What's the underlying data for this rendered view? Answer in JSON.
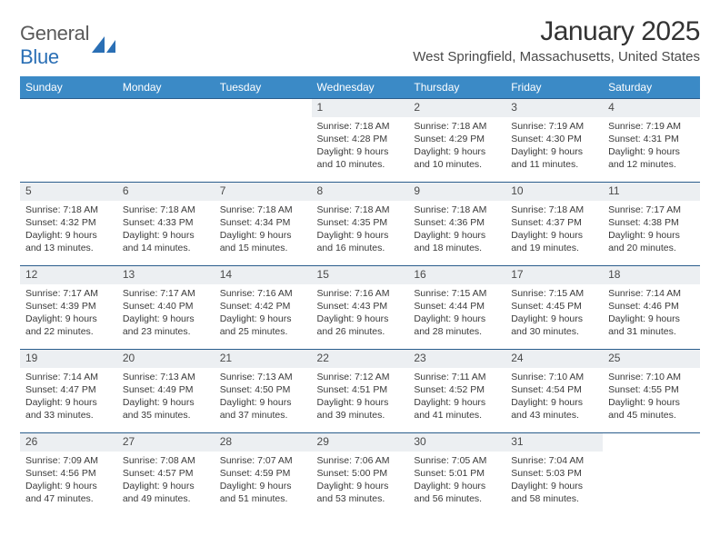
{
  "brand": {
    "part1": "General",
    "part2": "Blue"
  },
  "title": "January 2025",
  "location": "West Springfield, Massachusetts, United States",
  "dayHeaders": [
    "Sunday",
    "Monday",
    "Tuesday",
    "Wednesday",
    "Thursday",
    "Friday",
    "Saturday"
  ],
  "colors": {
    "headerBg": "#3b8ac6",
    "borderTop": "#2a5d8c",
    "dayRowBg": "#eceff2"
  },
  "weeks": [
    [
      {
        "empty": true
      },
      {
        "empty": true
      },
      {
        "empty": true
      },
      {
        "day": "1",
        "sunrise": "Sunrise: 7:18 AM",
        "sunset": "Sunset: 4:28 PM",
        "daylight": "Daylight: 9 hours and 10 minutes."
      },
      {
        "day": "2",
        "sunrise": "Sunrise: 7:18 AM",
        "sunset": "Sunset: 4:29 PM",
        "daylight": "Daylight: 9 hours and 10 minutes."
      },
      {
        "day": "3",
        "sunrise": "Sunrise: 7:19 AM",
        "sunset": "Sunset: 4:30 PM",
        "daylight": "Daylight: 9 hours and 11 minutes."
      },
      {
        "day": "4",
        "sunrise": "Sunrise: 7:19 AM",
        "sunset": "Sunset: 4:31 PM",
        "daylight": "Daylight: 9 hours and 12 minutes."
      }
    ],
    [
      {
        "day": "5",
        "sunrise": "Sunrise: 7:18 AM",
        "sunset": "Sunset: 4:32 PM",
        "daylight": "Daylight: 9 hours and 13 minutes."
      },
      {
        "day": "6",
        "sunrise": "Sunrise: 7:18 AM",
        "sunset": "Sunset: 4:33 PM",
        "daylight": "Daylight: 9 hours and 14 minutes."
      },
      {
        "day": "7",
        "sunrise": "Sunrise: 7:18 AM",
        "sunset": "Sunset: 4:34 PM",
        "daylight": "Daylight: 9 hours and 15 minutes."
      },
      {
        "day": "8",
        "sunrise": "Sunrise: 7:18 AM",
        "sunset": "Sunset: 4:35 PM",
        "daylight": "Daylight: 9 hours and 16 minutes."
      },
      {
        "day": "9",
        "sunrise": "Sunrise: 7:18 AM",
        "sunset": "Sunset: 4:36 PM",
        "daylight": "Daylight: 9 hours and 18 minutes."
      },
      {
        "day": "10",
        "sunrise": "Sunrise: 7:18 AM",
        "sunset": "Sunset: 4:37 PM",
        "daylight": "Daylight: 9 hours and 19 minutes."
      },
      {
        "day": "11",
        "sunrise": "Sunrise: 7:17 AM",
        "sunset": "Sunset: 4:38 PM",
        "daylight": "Daylight: 9 hours and 20 minutes."
      }
    ],
    [
      {
        "day": "12",
        "sunrise": "Sunrise: 7:17 AM",
        "sunset": "Sunset: 4:39 PM",
        "daylight": "Daylight: 9 hours and 22 minutes."
      },
      {
        "day": "13",
        "sunrise": "Sunrise: 7:17 AM",
        "sunset": "Sunset: 4:40 PM",
        "daylight": "Daylight: 9 hours and 23 minutes."
      },
      {
        "day": "14",
        "sunrise": "Sunrise: 7:16 AM",
        "sunset": "Sunset: 4:42 PM",
        "daylight": "Daylight: 9 hours and 25 minutes."
      },
      {
        "day": "15",
        "sunrise": "Sunrise: 7:16 AM",
        "sunset": "Sunset: 4:43 PM",
        "daylight": "Daylight: 9 hours and 26 minutes."
      },
      {
        "day": "16",
        "sunrise": "Sunrise: 7:15 AM",
        "sunset": "Sunset: 4:44 PM",
        "daylight": "Daylight: 9 hours and 28 minutes."
      },
      {
        "day": "17",
        "sunrise": "Sunrise: 7:15 AM",
        "sunset": "Sunset: 4:45 PM",
        "daylight": "Daylight: 9 hours and 30 minutes."
      },
      {
        "day": "18",
        "sunrise": "Sunrise: 7:14 AM",
        "sunset": "Sunset: 4:46 PM",
        "daylight": "Daylight: 9 hours and 31 minutes."
      }
    ],
    [
      {
        "day": "19",
        "sunrise": "Sunrise: 7:14 AM",
        "sunset": "Sunset: 4:47 PM",
        "daylight": "Daylight: 9 hours and 33 minutes."
      },
      {
        "day": "20",
        "sunrise": "Sunrise: 7:13 AM",
        "sunset": "Sunset: 4:49 PM",
        "daylight": "Daylight: 9 hours and 35 minutes."
      },
      {
        "day": "21",
        "sunrise": "Sunrise: 7:13 AM",
        "sunset": "Sunset: 4:50 PM",
        "daylight": "Daylight: 9 hours and 37 minutes."
      },
      {
        "day": "22",
        "sunrise": "Sunrise: 7:12 AM",
        "sunset": "Sunset: 4:51 PM",
        "daylight": "Daylight: 9 hours and 39 minutes."
      },
      {
        "day": "23",
        "sunrise": "Sunrise: 7:11 AM",
        "sunset": "Sunset: 4:52 PM",
        "daylight": "Daylight: 9 hours and 41 minutes."
      },
      {
        "day": "24",
        "sunrise": "Sunrise: 7:10 AM",
        "sunset": "Sunset: 4:54 PM",
        "daylight": "Daylight: 9 hours and 43 minutes."
      },
      {
        "day": "25",
        "sunrise": "Sunrise: 7:10 AM",
        "sunset": "Sunset: 4:55 PM",
        "daylight": "Daylight: 9 hours and 45 minutes."
      }
    ],
    [
      {
        "day": "26",
        "sunrise": "Sunrise: 7:09 AM",
        "sunset": "Sunset: 4:56 PM",
        "daylight": "Daylight: 9 hours and 47 minutes."
      },
      {
        "day": "27",
        "sunrise": "Sunrise: 7:08 AM",
        "sunset": "Sunset: 4:57 PM",
        "daylight": "Daylight: 9 hours and 49 minutes."
      },
      {
        "day": "28",
        "sunrise": "Sunrise: 7:07 AM",
        "sunset": "Sunset: 4:59 PM",
        "daylight": "Daylight: 9 hours and 51 minutes."
      },
      {
        "day": "29",
        "sunrise": "Sunrise: 7:06 AM",
        "sunset": "Sunset: 5:00 PM",
        "daylight": "Daylight: 9 hours and 53 minutes."
      },
      {
        "day": "30",
        "sunrise": "Sunrise: 7:05 AM",
        "sunset": "Sunset: 5:01 PM",
        "daylight": "Daylight: 9 hours and 56 minutes."
      },
      {
        "day": "31",
        "sunrise": "Sunrise: 7:04 AM",
        "sunset": "Sunset: 5:03 PM",
        "daylight": "Daylight: 9 hours and 58 minutes."
      },
      {
        "empty": true
      }
    ]
  ]
}
